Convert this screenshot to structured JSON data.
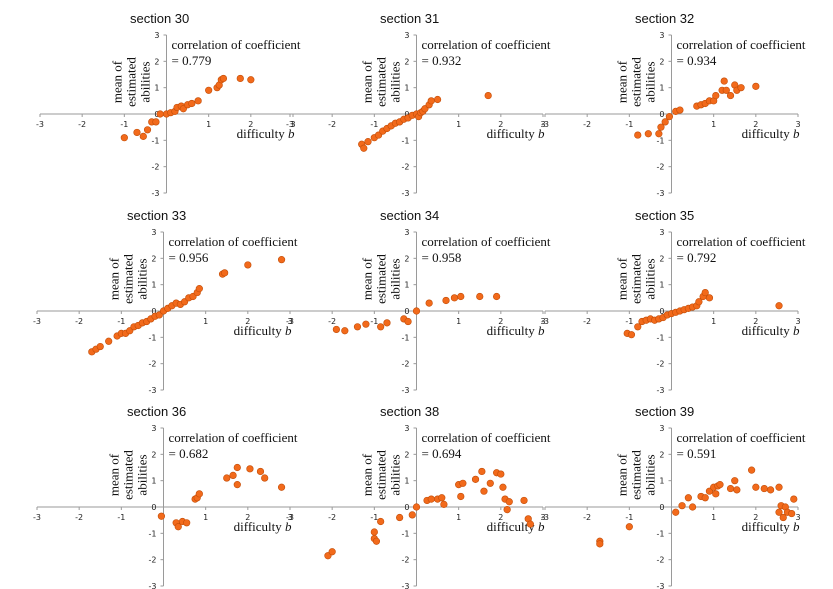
{
  "chart_data": [
    {
      "type": "scatter",
      "title": "section 30",
      "ylabel_lines": [
        "mean of",
        "estimated",
        "abilities"
      ],
      "xlabel": "difficulty",
      "xlabel_var": "b",
      "correlation_label": "correlation of coefficient",
      "correlation_value": "= 0.779",
      "xlim": [
        -3,
        3
      ],
      "ylim": [
        -3,
        3
      ],
      "xticks": [
        "-3",
        "-2",
        "-1",
        "0",
        "1",
        "2",
        "3"
      ],
      "yticks": [
        "3",
        "2",
        "1",
        "0",
        "-1",
        "-2",
        "-3"
      ],
      "points": [
        [
          -1.0,
          -0.9
        ],
        [
          -0.7,
          -0.7
        ],
        [
          -0.55,
          -0.85
        ],
        [
          -0.45,
          -0.6
        ],
        [
          -0.35,
          -0.3
        ],
        [
          -0.25,
          -0.3
        ],
        [
          -0.15,
          0.0
        ],
        [
          0.0,
          0.0
        ],
        [
          0.1,
          0.05
        ],
        [
          0.2,
          0.1
        ],
        [
          0.25,
          0.25
        ],
        [
          0.35,
          0.3
        ],
        [
          0.4,
          0.2
        ],
        [
          0.5,
          0.35
        ],
        [
          0.6,
          0.4
        ],
        [
          0.75,
          0.5
        ],
        [
          1.0,
          0.9
        ],
        [
          1.2,
          1.0
        ],
        [
          1.25,
          1.1
        ],
        [
          1.3,
          1.3
        ],
        [
          1.35,
          1.35
        ],
        [
          1.75,
          1.35
        ],
        [
          2.0,
          1.3
        ]
      ]
    },
    {
      "type": "scatter",
      "title": "section 31",
      "ylabel_lines": [
        "mean of",
        "estimated",
        "abilities"
      ],
      "xlabel": "difficulty",
      "xlabel_var": "b",
      "correlation_label": "correlation of coefficient",
      "correlation_value": "= 0.932",
      "xlim": [
        -3,
        3
      ],
      "ylim": [
        -3,
        3
      ],
      "xticks": [
        "-3",
        "-2",
        "-1",
        "0",
        "1",
        "2",
        "3"
      ],
      "yticks": [
        "3",
        "2",
        "1",
        "0",
        "-1",
        "-2",
        "-3"
      ],
      "points": [
        [
          -1.3,
          -1.15
        ],
        [
          -1.25,
          -1.3
        ],
        [
          -1.15,
          -1.05
        ],
        [
          -1.0,
          -0.9
        ],
        [
          -0.9,
          -0.8
        ],
        [
          -0.8,
          -0.65
        ],
        [
          -0.7,
          -0.55
        ],
        [
          -0.6,
          -0.45
        ],
        [
          -0.5,
          -0.35
        ],
        [
          -0.4,
          -0.3
        ],
        [
          -0.3,
          -0.2
        ],
        [
          -0.2,
          -0.15
        ],
        [
          -0.1,
          -0.05
        ],
        [
          0.0,
          0.0
        ],
        [
          0.05,
          -0.1
        ],
        [
          0.1,
          0.05
        ],
        [
          0.15,
          0.1
        ],
        [
          0.2,
          0.2
        ],
        [
          0.3,
          0.35
        ],
        [
          0.35,
          0.5
        ],
        [
          0.5,
          0.55
        ],
        [
          1.7,
          0.7
        ]
      ]
    },
    {
      "type": "scatter",
      "title": "section 32",
      "ylabel_lines": [
        "mean of",
        "estimated",
        "abilities"
      ],
      "xlabel": "difficulty",
      "xlabel_var": "b",
      "correlation_label": "correlation of coefficient",
      "correlation_value": "= 0.934",
      "xlim": [
        -3,
        3
      ],
      "ylim": [
        -3,
        3
      ],
      "xticks": [
        "-3",
        "-2",
        "-1",
        "0",
        "1",
        "2",
        "3"
      ],
      "yticks": [
        "3",
        "2",
        "1",
        "0",
        "-1",
        "-2",
        "-3"
      ],
      "points": [
        [
          -0.8,
          -0.8
        ],
        [
          -0.55,
          -0.75
        ],
        [
          -0.3,
          -0.75
        ],
        [
          -0.25,
          -0.5
        ],
        [
          -0.15,
          -0.3
        ],
        [
          -0.05,
          -0.1
        ],
        [
          0.1,
          0.1
        ],
        [
          0.2,
          0.15
        ],
        [
          0.6,
          0.3
        ],
        [
          0.7,
          0.35
        ],
        [
          0.8,
          0.4
        ],
        [
          0.9,
          0.5
        ],
        [
          1.0,
          0.5
        ],
        [
          1.05,
          0.7
        ],
        [
          1.2,
          0.9
        ],
        [
          1.25,
          1.25
        ],
        [
          1.3,
          0.9
        ],
        [
          1.4,
          0.7
        ],
        [
          1.5,
          1.1
        ],
        [
          1.55,
          0.9
        ],
        [
          1.65,
          1.0
        ],
        [
          2.0,
          1.05
        ]
      ]
    },
    {
      "type": "scatter",
      "title": "section 33",
      "ylabel_lines": [
        "mean of",
        "estimated",
        "abilities"
      ],
      "xlabel": "difficulty",
      "xlabel_var": "b",
      "correlation_label": "correlation of coefficient",
      "correlation_value": "= 0.956",
      "xlim": [
        -3,
        3
      ],
      "ylim": [
        -3,
        3
      ],
      "xticks": [
        "-3",
        "-2",
        "-1",
        "0",
        "1",
        "2",
        "3"
      ],
      "yticks": [
        "3",
        "2",
        "1",
        "0",
        "-1",
        "-2",
        "-3"
      ],
      "points": [
        [
          -1.7,
          -1.55
        ],
        [
          -1.6,
          -1.45
        ],
        [
          -1.5,
          -1.35
        ],
        [
          -1.3,
          -1.15
        ],
        [
          -1.1,
          -0.95
        ],
        [
          -1.0,
          -0.85
        ],
        [
          -0.9,
          -0.85
        ],
        [
          -0.8,
          -0.75
        ],
        [
          -0.7,
          -0.6
        ],
        [
          -0.6,
          -0.55
        ],
        [
          -0.5,
          -0.45
        ],
        [
          -0.4,
          -0.4
        ],
        [
          -0.3,
          -0.3
        ],
        [
          -0.2,
          -0.2
        ],
        [
          -0.1,
          -0.15
        ],
        [
          0.0,
          0.0
        ],
        [
          0.1,
          0.1
        ],
        [
          0.2,
          0.2
        ],
        [
          0.3,
          0.3
        ],
        [
          0.4,
          0.25
        ],
        [
          0.5,
          0.35
        ],
        [
          0.6,
          0.5
        ],
        [
          0.7,
          0.55
        ],
        [
          0.8,
          0.7
        ],
        [
          0.85,
          0.85
        ],
        [
          1.4,
          1.4
        ],
        [
          1.45,
          1.45
        ],
        [
          2.0,
          1.75
        ],
        [
          2.8,
          1.95
        ]
      ]
    },
    {
      "type": "scatter",
      "title": "section 34",
      "ylabel_lines": [
        "mean of",
        "estimated",
        "abilities"
      ],
      "xlabel": "difficulty",
      "xlabel_var": "b",
      "correlation_label": "correlation of coefficient",
      "correlation_value": "= 0.958",
      "xlim": [
        -3,
        3
      ],
      "ylim": [
        -3,
        3
      ],
      "xticks": [
        "-3",
        "-2",
        "-1",
        "0",
        "1",
        "2",
        "3"
      ],
      "yticks": [
        "3",
        "2",
        "1",
        "0",
        "-1",
        "-2",
        "-3"
      ],
      "points": [
        [
          -1.9,
          -0.7
        ],
        [
          -1.7,
          -0.75
        ],
        [
          -1.4,
          -0.6
        ],
        [
          -1.2,
          -0.5
        ],
        [
          -0.85,
          -0.6
        ],
        [
          -0.7,
          -0.45
        ],
        [
          -0.3,
          -0.3
        ],
        [
          -0.2,
          -0.4
        ],
        [
          0.0,
          0.0
        ],
        [
          0.3,
          0.3
        ],
        [
          0.7,
          0.4
        ],
        [
          0.9,
          0.5
        ],
        [
          1.05,
          0.55
        ],
        [
          1.5,
          0.55
        ],
        [
          1.9,
          0.55
        ]
      ]
    },
    {
      "type": "scatter",
      "title": "section 35",
      "ylabel_lines": [
        "mean of",
        "estimated",
        "abilities"
      ],
      "xlabel": "difficulty",
      "xlabel_var": "b",
      "correlation_label": "correlation of coefficient",
      "correlation_value": "= 0.792",
      "xlim": [
        -3,
        3
      ],
      "ylim": [
        -3,
        3
      ],
      "xticks": [
        "-3",
        "-2",
        "-1",
        "0",
        "1",
        "2",
        "3"
      ],
      "yticks": [
        "3",
        "2",
        "1",
        "0",
        "-1",
        "-2",
        "-3"
      ],
      "points": [
        [
          -1.05,
          -0.85
        ],
        [
          -0.95,
          -0.9
        ],
        [
          -0.8,
          -0.6
        ],
        [
          -0.7,
          -0.4
        ],
        [
          -0.6,
          -0.35
        ],
        [
          -0.5,
          -0.3
        ],
        [
          -0.4,
          -0.35
        ],
        [
          -0.3,
          -0.3
        ],
        [
          -0.2,
          -0.25
        ],
        [
          -0.1,
          -0.15
        ],
        [
          0.0,
          -0.1
        ],
        [
          0.1,
          -0.05
        ],
        [
          0.2,
          0.0
        ],
        [
          0.3,
          0.05
        ],
        [
          0.4,
          0.1
        ],
        [
          0.5,
          0.15
        ],
        [
          0.6,
          0.2
        ],
        [
          0.65,
          0.35
        ],
        [
          0.75,
          0.55
        ],
        [
          0.8,
          0.7
        ],
        [
          0.9,
          0.5
        ],
        [
          2.55,
          0.2
        ]
      ]
    },
    {
      "type": "scatter",
      "title": "section 36",
      "ylabel_lines": [
        "mean of",
        "estimated",
        "abilities"
      ],
      "xlabel": "difficulty",
      "xlabel_var": "b",
      "correlation_label": "correlation of coefficient",
      "correlation_value": "= 0.682",
      "xlim": [
        -3,
        3
      ],
      "ylim": [
        -3,
        3
      ],
      "xticks": [
        "-3",
        "-2",
        "-1",
        "0",
        "1",
        "2",
        "3"
      ],
      "yticks": [
        "3",
        "2",
        "1",
        "0",
        "-1",
        "-2",
        "-3"
      ],
      "points": [
        [
          -0.05,
          -0.35
        ],
        [
          0.3,
          -0.6
        ],
        [
          0.35,
          -0.75
        ],
        [
          0.45,
          -0.55
        ],
        [
          0.55,
          -0.6
        ],
        [
          0.75,
          0.3
        ],
        [
          0.8,
          0.35
        ],
        [
          0.85,
          0.5
        ],
        [
          1.5,
          1.1
        ],
        [
          1.65,
          1.2
        ],
        [
          1.75,
          1.5
        ],
        [
          1.75,
          0.85
        ],
        [
          2.05,
          1.45
        ],
        [
          2.3,
          1.35
        ],
        [
          2.4,
          1.1
        ],
        [
          2.8,
          0.75
        ]
      ]
    },
    {
      "type": "scatter",
      "title": "section 38",
      "ylabel_lines": [
        "mean of",
        "estimated",
        "abilities"
      ],
      "xlabel": "difficulty",
      "xlabel_var": "b",
      "correlation_label": "correlation of coefficient",
      "correlation_value": "= 0.694",
      "xlim": [
        -3,
        3
      ],
      "ylim": [
        -3,
        3
      ],
      "xticks": [
        "-3",
        "-2",
        "-1",
        "0",
        "1",
        "2",
        "3"
      ],
      "yticks": [
        "3",
        "2",
        "1",
        "0",
        "-1",
        "-2",
        "-3"
      ],
      "points": [
        [
          -2.1,
          -1.85
        ],
        [
          -2.0,
          -1.7
        ],
        [
          -1.0,
          -0.95
        ],
        [
          -1.0,
          -1.2
        ],
        [
          -0.95,
          -1.3
        ],
        [
          -0.85,
          -0.55
        ],
        [
          -0.4,
          -0.4
        ],
        [
          -0.1,
          -0.3
        ],
        [
          0.0,
          0.0
        ],
        [
          0.25,
          0.25
        ],
        [
          0.35,
          0.3
        ],
        [
          0.5,
          0.3
        ],
        [
          0.6,
          0.35
        ],
        [
          0.65,
          0.1
        ],
        [
          1.0,
          0.85
        ],
        [
          1.05,
          0.4
        ],
        [
          1.1,
          0.9
        ],
        [
          1.4,
          1.05
        ],
        [
          1.55,
          1.35
        ],
        [
          1.6,
          0.6
        ],
        [
          1.75,
          0.9
        ],
        [
          1.9,
          1.3
        ],
        [
          2.0,
          1.25
        ],
        [
          2.05,
          0.75
        ],
        [
          2.1,
          0.3
        ],
        [
          2.15,
          -0.1
        ],
        [
          2.2,
          0.2
        ],
        [
          2.55,
          0.25
        ],
        [
          2.65,
          -0.45
        ],
        [
          2.7,
          -0.65
        ]
      ]
    },
    {
      "type": "scatter",
      "title": "section 39",
      "ylabel_lines": [
        "mean of",
        "estimated",
        "abilities"
      ],
      "xlabel": "difficulty",
      "xlabel_var": "b",
      "correlation_label": "correlation of coefficient",
      "correlation_value": "= 0.591",
      "xlim": [
        -3,
        3
      ],
      "ylim": [
        -3,
        3
      ],
      "xticks": [
        "-3",
        "-2",
        "-1",
        "0",
        "1",
        "2",
        "3"
      ],
      "yticks": [
        "3",
        "2",
        "1",
        "0",
        "-1",
        "-2",
        "-3"
      ],
      "points": [
        [
          -1.7,
          -1.3
        ],
        [
          -1.7,
          -1.4
        ],
        [
          -1.0,
          -0.75
        ],
        [
          0.1,
          -0.2
        ],
        [
          0.25,
          0.05
        ],
        [
          0.4,
          0.35
        ],
        [
          0.5,
          0.0
        ],
        [
          0.7,
          0.4
        ],
        [
          0.8,
          0.35
        ],
        [
          0.9,
          0.6
        ],
        [
          1.0,
          0.75
        ],
        [
          1.05,
          0.5
        ],
        [
          1.1,
          0.8
        ],
        [
          1.15,
          0.85
        ],
        [
          1.4,
          0.7
        ],
        [
          1.5,
          1.0
        ],
        [
          1.55,
          0.65
        ],
        [
          1.9,
          1.4
        ],
        [
          2.0,
          0.75
        ],
        [
          2.2,
          0.7
        ],
        [
          2.35,
          0.65
        ],
        [
          2.55,
          0.75
        ],
        [
          2.55,
          -0.2
        ],
        [
          2.6,
          0.05
        ],
        [
          2.65,
          -0.4
        ],
        [
          2.7,
          0.0
        ],
        [
          2.75,
          -0.2
        ],
        [
          2.85,
          -0.25
        ],
        [
          2.9,
          0.3
        ]
      ]
    }
  ]
}
